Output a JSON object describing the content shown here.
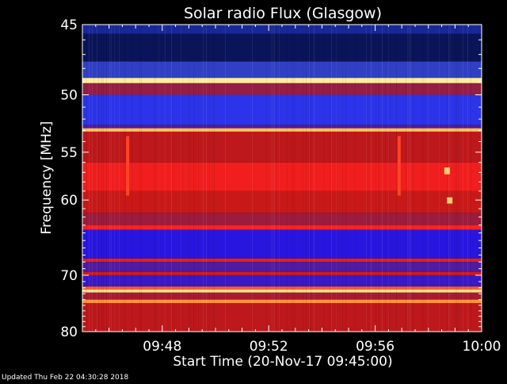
{
  "chart_data": {
    "type": "heatmap",
    "title": "Solar radio Flux (Glasgow)",
    "xlabel": "Start Time (20-Nov-17 09:45:00)",
    "ylabel": "Frequency [MHz]",
    "x_ticks": [
      "09:48",
      "09:52",
      "09:56",
      "10:00"
    ],
    "x_tick_minutes": [
      48,
      52,
      56,
      60
    ],
    "xlim_minutes": [
      45,
      60
    ],
    "y_ticks": [
      45,
      50,
      55,
      60,
      70,
      80
    ],
    "ylim": [
      45,
      80
    ],
    "y_scale": "reciprocal",
    "colormap": [
      "#000000",
      "#10208a",
      "#3a4ad8",
      "#1414ff",
      "#7a2060",
      "#c01818",
      "#ff2020",
      "#ffb040",
      "#ffffc0"
    ],
    "frequency_bands": [
      {
        "from": 45.0,
        "to": 45.6,
        "level": 0.15
      },
      {
        "from": 45.6,
        "to": 47.5,
        "level": 0.08
      },
      {
        "from": 47.5,
        "to": 48.7,
        "level": 0.22
      },
      {
        "from": 48.7,
        "to": 49.1,
        "level": 0.97
      },
      {
        "from": 49.1,
        "to": 50.0,
        "level": 0.55
      },
      {
        "from": 50.0,
        "to": 52.5,
        "level": 0.3
      },
      {
        "from": 52.5,
        "to": 52.8,
        "level": 0.45
      },
      {
        "from": 52.8,
        "to": 53.1,
        "level": 0.9
      },
      {
        "from": 53.1,
        "to": 56.0,
        "level": 0.62
      },
      {
        "from": 56.0,
        "to": 59.0,
        "level": 0.72
      },
      {
        "from": 59.0,
        "to": 61.5,
        "level": 0.64
      },
      {
        "from": 61.5,
        "to": 63.0,
        "level": 0.56
      },
      {
        "from": 63.0,
        "to": 63.6,
        "level": 0.75
      },
      {
        "from": 63.6,
        "to": 67.5,
        "level": 0.4
      },
      {
        "from": 67.5,
        "to": 68.0,
        "level": 0.7
      },
      {
        "from": 68.0,
        "to": 69.5,
        "level": 0.45
      },
      {
        "from": 69.5,
        "to": 70.0,
        "level": 0.66
      },
      {
        "from": 70.0,
        "to": 71.8,
        "level": 0.42
      },
      {
        "from": 71.8,
        "to": 72.3,
        "level": 0.8
      },
      {
        "from": 72.3,
        "to": 72.8,
        "level": 0.95
      },
      {
        "from": 72.8,
        "to": 74.0,
        "level": 0.58
      },
      {
        "from": 74.0,
        "to": 74.6,
        "level": 0.85
      },
      {
        "from": 74.6,
        "to": 80.0,
        "level": 0.62
      }
    ],
    "bursts": [
      {
        "time_minutes": 46.7,
        "from": 53.5,
        "to": 59.5,
        "level": 0.78
      },
      {
        "time_minutes": 56.9,
        "from": 53.5,
        "to": 59.5,
        "level": 0.78
      },
      {
        "time_minutes": 58.7,
        "from": 56.5,
        "to": 57.2,
        "level": 0.92
      },
      {
        "time_minutes": 58.8,
        "from": 59.7,
        "to": 60.4,
        "level": 0.92
      }
    ],
    "grid": false,
    "legend": "none"
  },
  "footer": {
    "updated": "Updated Thu Feb 22 04:30:28 2018"
  }
}
